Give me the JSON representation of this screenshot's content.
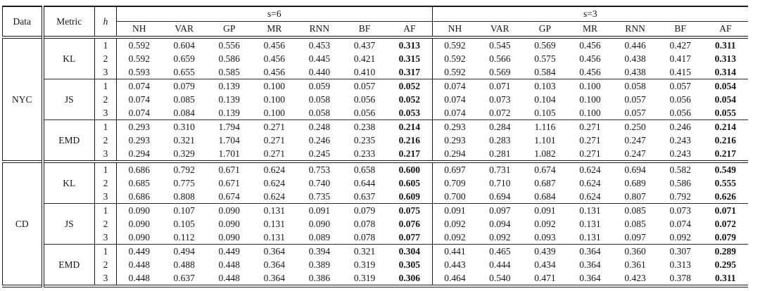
{
  "table": {
    "header": {
      "data": "Data",
      "metric": "Metric",
      "h": "h",
      "groups": [
        {
          "label": "s=6",
          "cols": [
            "NH",
            "VAR",
            "GP",
            "MR",
            "RNN",
            "BF",
            "AF"
          ]
        },
        {
          "label": "s=3",
          "cols": [
            "NH",
            "VAR",
            "GP",
            "MR",
            "RNN",
            "BF",
            "AF"
          ]
        }
      ]
    },
    "blocks": [
      {
        "data": "NYC",
        "metrics": [
          {
            "name": "KL",
            "rows": [
              {
                "h": "1",
                "s6": [
                  "0.592",
                  "0.604",
                  "0.556",
                  "0.456",
                  "0.453",
                  "0.437",
                  "0.313"
                ],
                "s3": [
                  "0.592",
                  "0.545",
                  "0.569",
                  "0.456",
                  "0.446",
                  "0.427",
                  "0.311"
                ]
              },
              {
                "h": "2",
                "s6": [
                  "0.592",
                  "0.659",
                  "0.586",
                  "0.456",
                  "0.445",
                  "0.421",
                  "0.315"
                ],
                "s3": [
                  "0.592",
                  "0.566",
                  "0.575",
                  "0.456",
                  "0.438",
                  "0.417",
                  "0.313"
                ]
              },
              {
                "h": "3",
                "s6": [
                  "0.593",
                  "0.655",
                  "0.585",
                  "0.456",
                  "0.440",
                  "0.410",
                  "0.317"
                ],
                "s3": [
                  "0.592",
                  "0.569",
                  "0.584",
                  "0.456",
                  "0.438",
                  "0.415",
                  "0.314"
                ]
              }
            ]
          },
          {
            "name": "JS",
            "rows": [
              {
                "h": "1",
                "s6": [
                  "0.074",
                  "0.079",
                  "0.139",
                  "0.100",
                  "0.059",
                  "0.057",
                  "0.052"
                ],
                "s3": [
                  "0.074",
                  "0.071",
                  "0.103",
                  "0.100",
                  "0.058",
                  "0.057",
                  "0.054"
                ]
              },
              {
                "h": "2",
                "s6": [
                  "0.074",
                  "0.085",
                  "0.139",
                  "0.100",
                  "0.058",
                  "0.056",
                  "0.052"
                ],
                "s3": [
                  "0.074",
                  "0.073",
                  "0.104",
                  "0.100",
                  "0.057",
                  "0.056",
                  "0.054"
                ]
              },
              {
                "h": "3",
                "s6": [
                  "0.074",
                  "0.084",
                  "0.139",
                  "0.100",
                  "0.058",
                  "0.056",
                  "0.053"
                ],
                "s3": [
                  "0.074",
                  "0.072",
                  "0.105",
                  "0.100",
                  "0.057",
                  "0.056",
                  "0.055"
                ]
              }
            ]
          },
          {
            "name": "EMD",
            "rows": [
              {
                "h": "1",
                "s6": [
                  "0.293",
                  "0.310",
                  "1.794",
                  "0.271",
                  "0.248",
                  "0.238",
                  "0.214"
                ],
                "s3": [
                  "0.293",
                  "0.284",
                  "1.116",
                  "0.271",
                  "0.250",
                  "0.246",
                  "0.214"
                ]
              },
              {
                "h": "2",
                "s6": [
                  "0.293",
                  "0.321",
                  "1.704",
                  "0.271",
                  "0.246",
                  "0.235",
                  "0.216"
                ],
                "s3": [
                  "0.293",
                  "0.283",
                  "1.101",
                  "0.271",
                  "0.247",
                  "0.243",
                  "0.216"
                ]
              },
              {
                "h": "3",
                "s6": [
                  "0.294",
                  "0.329",
                  "1.701",
                  "0.271",
                  "0.245",
                  "0.233",
                  "0.217"
                ],
                "s3": [
                  "0.294",
                  "0.281",
                  "1.082",
                  "0.271",
                  "0.247",
                  "0.243",
                  "0.217"
                ]
              }
            ]
          }
        ]
      },
      {
        "data": "CD",
        "metrics": [
          {
            "name": "KL",
            "rows": [
              {
                "h": "1",
                "s6": [
                  "0.686",
                  "0.792",
                  "0.671",
                  "0.624",
                  "0.753",
                  "0.658",
                  "0.600"
                ],
                "s3": [
                  "0.697",
                  "0.731",
                  "0.674",
                  "0.624",
                  "0.694",
                  "0.582",
                  "0.549"
                ]
              },
              {
                "h": "2",
                "s6": [
                  "0.685",
                  "0.775",
                  "0.671",
                  "0.624",
                  "0.740",
                  "0.644",
                  "0.605"
                ],
                "s3": [
                  "0.709",
                  "0.710",
                  "0.687",
                  "0.624",
                  "0.689",
                  "0.586",
                  "0.555"
                ]
              },
              {
                "h": "3",
                "s6": [
                  "0.686",
                  "0.808",
                  "0.674",
                  "0.624",
                  "0.735",
                  "0.637",
                  "0.609"
                ],
                "s3": [
                  "0.700",
                  "0.694",
                  "0.684",
                  "0.624",
                  "0.807",
                  "0.792",
                  "0.626"
                ]
              }
            ]
          },
          {
            "name": "JS",
            "rows": [
              {
                "h": "1",
                "s6": [
                  "0.090",
                  "0.107",
                  "0.090",
                  "0.131",
                  "0.091",
                  "0.079",
                  "0.075"
                ],
                "s3": [
                  "0.091",
                  "0.097",
                  "0.091",
                  "0.131",
                  "0.085",
                  "0.073",
                  "0.071"
                ]
              },
              {
                "h": "2",
                "s6": [
                  "0.090",
                  "0.105",
                  "0.090",
                  "0.131",
                  "0.090",
                  "0.078",
                  "0.076"
                ],
                "s3": [
                  "0.092",
                  "0.094",
                  "0.092",
                  "0.131",
                  "0.085",
                  "0.074",
                  "0.072"
                ]
              },
              {
                "h": "3",
                "s6": [
                  "0.090",
                  "0.112",
                  "0.090",
                  "0.131",
                  "0.089",
                  "0.078",
                  "0.077"
                ],
                "s3": [
                  "0.092",
                  "0.092",
                  "0.093",
                  "0.131",
                  "0.097",
                  "0.092",
                  "0.079"
                ]
              }
            ]
          },
          {
            "name": "EMD",
            "rows": [
              {
                "h": "1",
                "s6": [
                  "0.449",
                  "0.494",
                  "0.449",
                  "0.364",
                  "0.394",
                  "0.321",
                  "0.304"
                ],
                "s3": [
                  "0.441",
                  "0.465",
                  "0.439",
                  "0.364",
                  "0.360",
                  "0.307",
                  "0.289"
                ]
              },
              {
                "h": "2",
                "s6": [
                  "0.448",
                  "0.488",
                  "0.448",
                  "0.364",
                  "0.389",
                  "0.319",
                  "0.305"
                ],
                "s3": [
                  "0.443",
                  "0.444",
                  "0.434",
                  "0.364",
                  "0.361",
                  "0.313",
                  "0.295"
                ]
              },
              {
                "h": "3",
                "s6": [
                  "0.448",
                  "0.637",
                  "0.448",
                  "0.364",
                  "0.386",
                  "0.319",
                  "0.306"
                ],
                "s3": [
                  "0.464",
                  "0.540",
                  "0.471",
                  "0.364",
                  "0.423",
                  "0.378",
                  "0.311"
                ]
              }
            ]
          }
        ]
      }
    ]
  }
}
